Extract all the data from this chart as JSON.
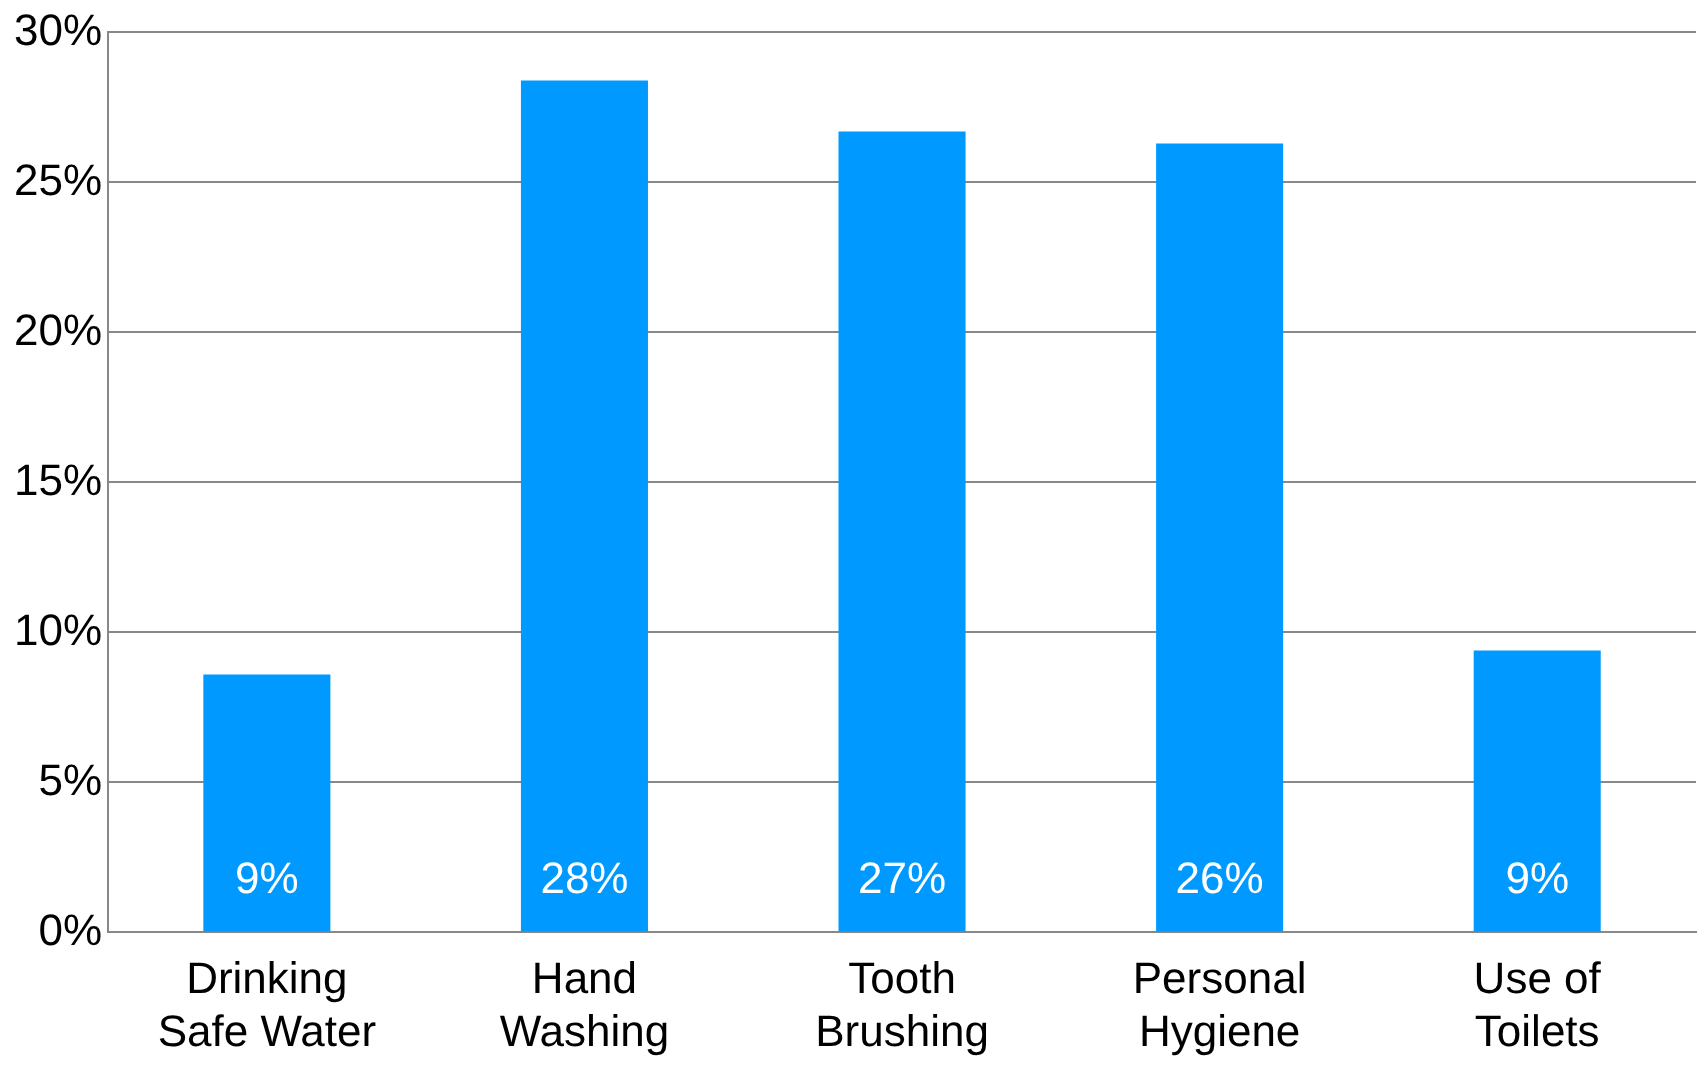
{
  "chart_data": {
    "type": "bar",
    "categories": [
      "Drinking Safe Water",
      "Hand Washing",
      "Tooth Brushing",
      "Personal Hygiene",
      "Use of Toilets"
    ],
    "values": [
      8.6,
      28.4,
      26.7,
      26.3,
      9.4
    ],
    "value_labels": [
      "9%",
      "28%",
      "27%",
      "26%",
      "9%"
    ],
    "color": "#0099ff",
    "ylim": [
      0,
      30
    ],
    "yticks": [
      {
        "value": 0,
        "label": "0%"
      },
      {
        "value": 5,
        "label": "5%"
      },
      {
        "value": 10,
        "label": "10%"
      },
      {
        "value": 15,
        "label": "15%"
      },
      {
        "value": 20,
        "label": "20%"
      },
      {
        "value": 25,
        "label": "25%"
      },
      {
        "value": 30,
        "label": "30%"
      }
    ],
    "grid": "y",
    "legend": false
  }
}
